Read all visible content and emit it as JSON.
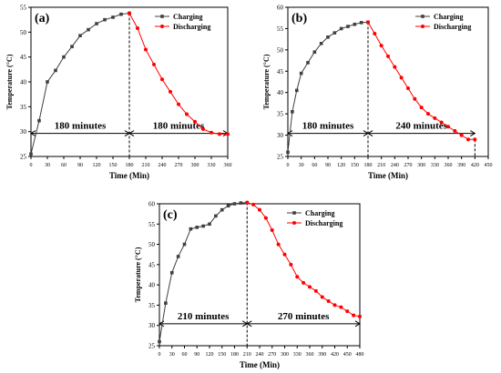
{
  "colors": {
    "charging": "#404040",
    "discharging": "#ff0000",
    "axis": "#000000"
  },
  "chart_data": [
    {
      "type": "line",
      "panel_label": "(a)",
      "xlabel": "Time (Min)",
      "ylabel": "Temperature (°C)",
      "xlim": [
        0,
        360
      ],
      "ylim": [
        25,
        55
      ],
      "xticks": [
        0,
        30,
        60,
        90,
        120,
        150,
        180,
        210,
        240,
        270,
        300,
        330,
        360
      ],
      "yticks": [
        25,
        30,
        35,
        40,
        45,
        50,
        55
      ],
      "grid": false,
      "legend": "top-right",
      "divider_x": 180,
      "annotations": [
        {
          "text": "180 minutes",
          "from": 0,
          "to": 180
        },
        {
          "text": "180 minutes",
          "from": 180,
          "to": 360
        }
      ],
      "series": [
        {
          "name": "Charging",
          "color": "#404040",
          "marker": "square",
          "x": [
            0,
            15,
            30,
            45,
            60,
            75,
            90,
            105,
            120,
            135,
            150,
            165,
            180
          ],
          "y": [
            25.5,
            32.2,
            40.0,
            42.3,
            45.0,
            47.1,
            49.3,
            50.5,
            51.7,
            52.5,
            53.0,
            53.6,
            53.8
          ]
        },
        {
          "name": "Discharging",
          "color": "#ff0000",
          "marker": "circle",
          "x": [
            180,
            195,
            210,
            225,
            240,
            255,
            270,
            285,
            300,
            315,
            330,
            345,
            360
          ],
          "y": [
            53.8,
            50.8,
            46.5,
            43.5,
            40.5,
            38.0,
            35.5,
            33.5,
            32.0,
            30.5,
            29.8,
            29.5,
            29.5
          ]
        }
      ]
    },
    {
      "type": "line",
      "panel_label": "(b)",
      "xlabel": "Time (Min)",
      "ylabel": "Temperature (°C)",
      "xlim": [
        0,
        450
      ],
      "ylim": [
        25,
        60
      ],
      "xticks": [
        0,
        30,
        60,
        90,
        120,
        150,
        180,
        210,
        240,
        270,
        300,
        330,
        360,
        390,
        420,
        450
      ],
      "yticks": [
        25,
        30,
        35,
        40,
        45,
        50,
        55,
        60
      ],
      "grid": false,
      "legend": "top-right",
      "divider_x": 180,
      "annotations": [
        {
          "text": "180 minutes",
          "from": 0,
          "to": 180
        },
        {
          "text": "240 minutes",
          "from": 180,
          "to": 420
        }
      ],
      "series": [
        {
          "name": "Charging",
          "color": "#404040",
          "marker": "square",
          "x": [
            0,
            10,
            20,
            30,
            45,
            60,
            75,
            90,
            105,
            120,
            135,
            150,
            165,
            180
          ],
          "y": [
            26.0,
            35.5,
            40.5,
            44.5,
            47.0,
            49.5,
            51.5,
            53.0,
            54.0,
            55.0,
            55.5,
            56.0,
            56.4,
            56.5
          ]
        },
        {
          "name": "Discharging",
          "color": "#ff0000",
          "marker": "circle",
          "x": [
            180,
            195,
            210,
            225,
            240,
            255,
            270,
            285,
            300,
            315,
            330,
            345,
            360,
            375,
            390,
            405,
            420
          ],
          "y": [
            56.5,
            53.8,
            51.0,
            48.5,
            46.0,
            43.5,
            41.0,
            38.5,
            36.5,
            35.0,
            34.0,
            33.0,
            32.0,
            31.0,
            30.0,
            29.0,
            29.0
          ]
        }
      ]
    },
    {
      "type": "line",
      "panel_label": "(c)",
      "xlabel": "Time (Min)",
      "ylabel": "Temperature (°C)",
      "xlim": [
        0,
        480
      ],
      "ylim": [
        25,
        60
      ],
      "xticks": [
        0,
        30,
        60,
        90,
        120,
        150,
        180,
        210,
        240,
        270,
        300,
        330,
        360,
        390,
        420,
        450,
        480
      ],
      "yticks": [
        25,
        30,
        35,
        40,
        45,
        50,
        55,
        60
      ],
      "grid": false,
      "legend": "top-right",
      "divider_x": 210,
      "annotations": [
        {
          "text": "210 minutes",
          "from": 0,
          "to": 210
        },
        {
          "text": "270 minutes",
          "from": 210,
          "to": 480
        }
      ],
      "series": [
        {
          "name": "Charging",
          "color": "#404040",
          "marker": "square",
          "x": [
            0,
            15,
            30,
            45,
            60,
            75,
            90,
            105,
            120,
            135,
            150,
            165,
            180,
            195,
            210
          ],
          "y": [
            26.0,
            35.5,
            43.0,
            47.0,
            50.0,
            53.8,
            54.2,
            54.5,
            55.0,
            57.0,
            58.5,
            59.5,
            60.0,
            60.2,
            60.3
          ]
        },
        {
          "name": "Discharging",
          "color": "#ff0000",
          "marker": "circle",
          "x": [
            210,
            225,
            240,
            255,
            270,
            285,
            300,
            315,
            330,
            345,
            360,
            375,
            390,
            405,
            420,
            435,
            450,
            465,
            480
          ],
          "y": [
            60.3,
            59.8,
            58.5,
            56.5,
            53.5,
            50.0,
            47.5,
            45.0,
            42.0,
            40.5,
            39.5,
            38.5,
            37.0,
            36.0,
            35.0,
            34.5,
            33.5,
            32.5,
            32.2
          ]
        }
      ]
    }
  ]
}
